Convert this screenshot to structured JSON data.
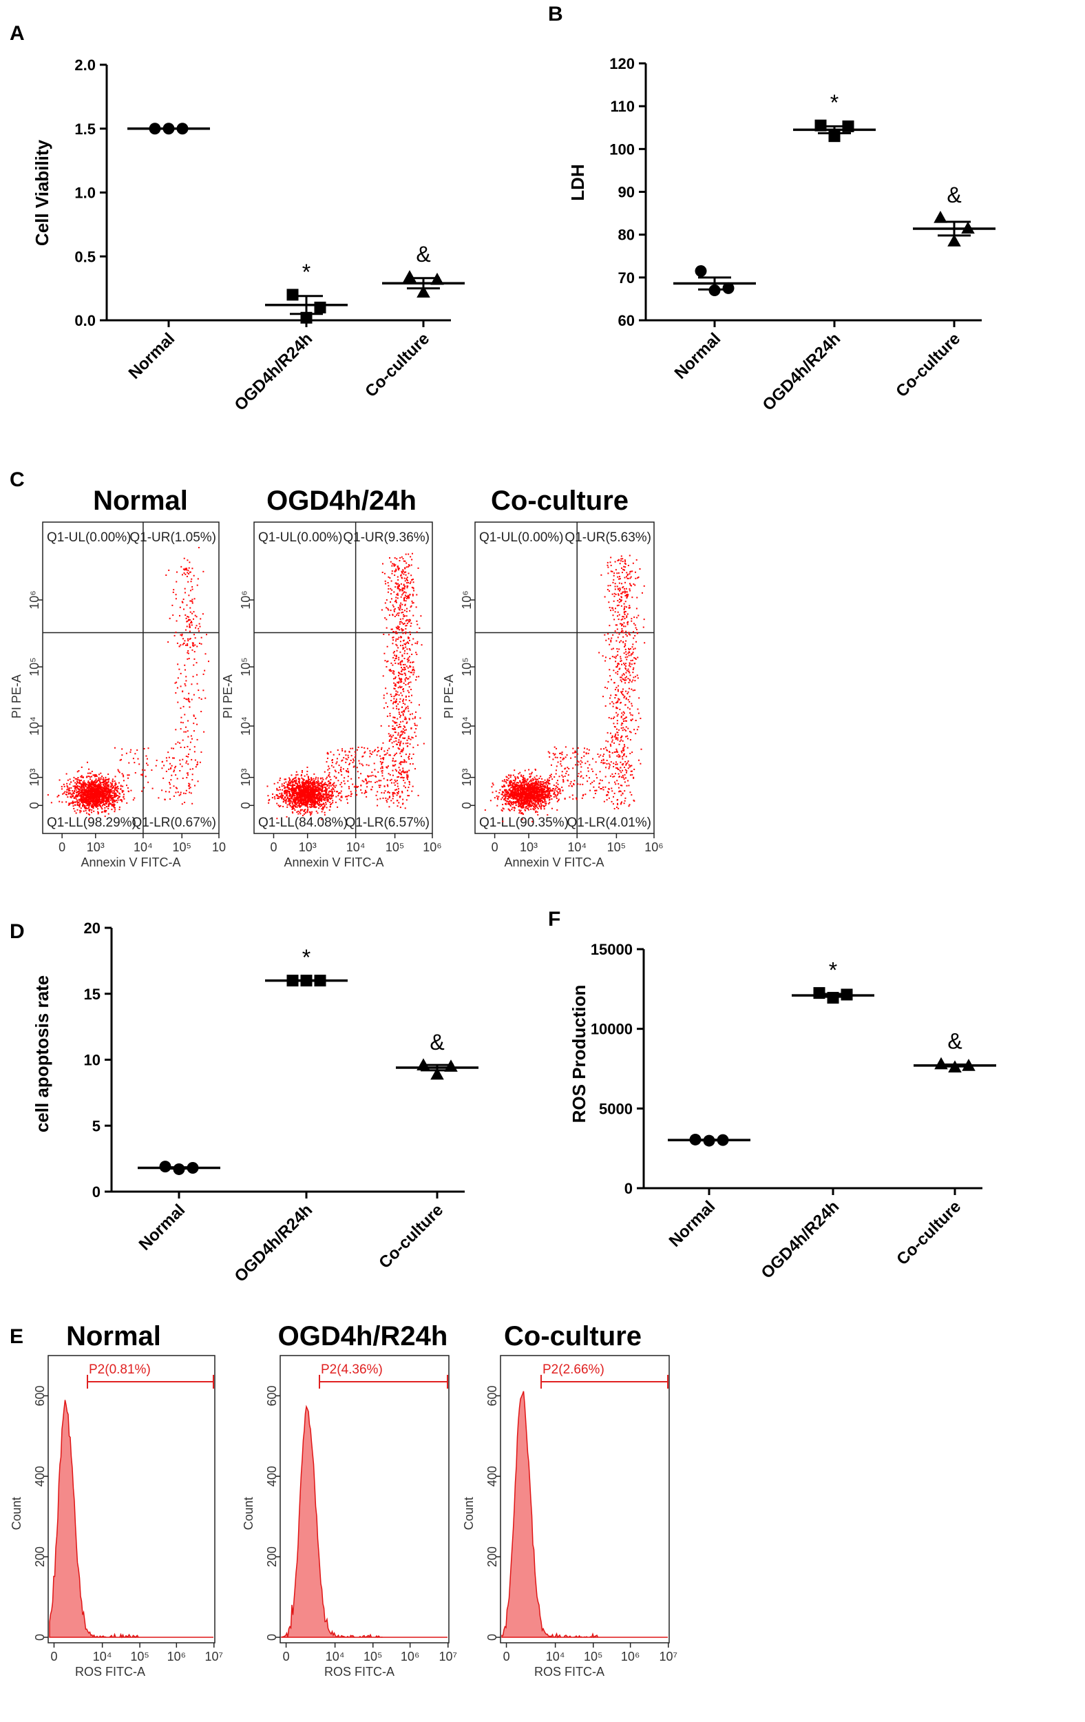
{
  "figure": {
    "panel_labels": {
      "A": "A",
      "B": "B",
      "C": "C",
      "D": "D",
      "F": "F",
      "E": "E"
    }
  },
  "chart_data": [
    {
      "panel": "A",
      "type": "scatter",
      "ylabel": "Cell Viability",
      "categories": [
        "Normal",
        "OGD4h/R24h",
        "Co-culture"
      ],
      "ylim": [
        0,
        2.0
      ],
      "yticks": [
        "0.0",
        "0.5",
        "1.0",
        "1.5",
        "2.0"
      ],
      "series": [
        {
          "marker": "circle",
          "values": [
            1.5,
            1.5,
            1.5
          ],
          "mean": 1.5,
          "sem": 0.0,
          "annotation": ""
        },
        {
          "marker": "square",
          "values": [
            0.2,
            0.02,
            0.1
          ],
          "mean": 0.12,
          "sem": 0.07,
          "annotation": "*"
        },
        {
          "marker": "triangle",
          "values": [
            0.34,
            0.22,
            0.32
          ],
          "mean": 0.29,
          "sem": 0.04,
          "annotation": "&"
        }
      ]
    },
    {
      "panel": "B",
      "type": "scatter",
      "ylabel": "LDH",
      "categories": [
        "Normal",
        "OGD4h/R24h",
        "Co-culture"
      ],
      "ylim": [
        60,
        120
      ],
      "yticks": [
        "60",
        "70",
        "80",
        "90",
        "100",
        "110",
        "120"
      ],
      "series": [
        {
          "marker": "circle",
          "values": [
            71.5,
            67,
            67.5
          ],
          "mean": 68.6,
          "sem": 1.4,
          "annotation": ""
        },
        {
          "marker": "square",
          "values": [
            105.5,
            103,
            105.3
          ],
          "mean": 104.5,
          "sem": 0.8,
          "annotation": "*"
        },
        {
          "marker": "triangle",
          "values": [
            84,
            78.5,
            81.5
          ],
          "mean": 81.4,
          "sem": 1.6,
          "annotation": "&"
        }
      ]
    },
    {
      "panel": "C",
      "type": "scatter",
      "kind": "flow cytometry dot plots",
      "xlabel": "Annexin V FITC-A",
      "ylabel": "PI PE-A",
      "plots": [
        {
          "title": "Normal",
          "UL": "Q1-UL(0.00%)",
          "UR": "Q1-UR(1.05%)",
          "LL": "Q1-LL(98.29%)",
          "LR": "Q1-LR(0.67%)",
          "xticks": [
            "0",
            "10³",
            "10⁴",
            "10⁵",
            "10"
          ],
          "yticks": [
            "0",
            "10³",
            "10⁴",
            "10⁵",
            "10⁶"
          ]
        },
        {
          "title": "OGD4h/24h",
          "UL": "Q1-UL(0.00%)",
          "UR": "Q1-UR(9.36%)",
          "LL": "Q1-LL(84.08%)",
          "LR": "Q1-LR(6.57%)",
          "xticks": [
            "0",
            "10³",
            "10⁴",
            "10⁵",
            "10⁶"
          ],
          "yticks": [
            "0",
            "10³",
            "10⁴",
            "10⁵",
            "10⁶"
          ]
        },
        {
          "title": "Co-culture",
          "UL": "Q1-UL(0.00%)",
          "UR": "Q1-UR(5.63%)",
          "LL": "Q1-LL(90.35%)",
          "LR": "Q1-LR(4.01%)",
          "xticks": [
            "0",
            "10³",
            "10⁴",
            "10⁵",
            "10⁶"
          ],
          "yticks": [
            "0",
            "10³",
            "10⁴",
            "10⁵",
            "10⁶"
          ]
        }
      ]
    },
    {
      "panel": "D",
      "type": "scatter",
      "ylabel": "cell apoptosis rate",
      "categories": [
        "Normal",
        "OGD4h/R24h",
        "Co-culture"
      ],
      "ylim": [
        0,
        20
      ],
      "yticks": [
        "0",
        "5",
        "10",
        "15",
        "20"
      ],
      "series": [
        {
          "marker": "circle",
          "values": [
            1.9,
            1.7,
            1.8
          ],
          "mean": 1.8,
          "sem": 0.05,
          "annotation": ""
        },
        {
          "marker": "square",
          "values": [
            16.0,
            16.0,
            16.0
          ],
          "mean": 16.0,
          "sem": 0.02,
          "annotation": "*"
        },
        {
          "marker": "triangle",
          "values": [
            9.6,
            8.9,
            9.5
          ],
          "mean": 9.4,
          "sem": 0.2,
          "annotation": "&"
        }
      ]
    },
    {
      "panel": "F",
      "type": "scatter",
      "ylabel": "ROS Production",
      "categories": [
        "Normal",
        "OGD4h/R24h",
        "Co-culture"
      ],
      "ylim": [
        0,
        15000
      ],
      "yticks": [
        "0",
        "5000",
        "10000",
        "15000"
      ],
      "series": [
        {
          "marker": "circle",
          "values": [
            3050,
            2980,
            3020
          ],
          "mean": 3020,
          "sem": 20,
          "annotation": ""
        },
        {
          "marker": "square",
          "values": [
            12250,
            11950,
            12150
          ],
          "mean": 12100,
          "sem": 90,
          "annotation": "*"
        },
        {
          "marker": "triangle",
          "values": [
            7800,
            7600,
            7700
          ],
          "mean": 7700,
          "sem": 60,
          "annotation": "&"
        }
      ]
    },
    {
      "panel": "E",
      "type": "area",
      "kind": "flow cytometry histograms",
      "xlabel": "ROS FITC-A",
      "ylabel": "Count",
      "yticks": [
        "0",
        "200",
        "400",
        "600"
      ],
      "xticks": [
        "0",
        "10⁴",
        "10⁵",
        "10⁶",
        "10⁷"
      ],
      "plots": [
        {
          "title": "Normal",
          "gate": "P2(0.81%)",
          "peak": 575
        },
        {
          "title": "OGD4h/R24h",
          "gate": "P2(4.36%)",
          "peak": 565
        },
        {
          "title": "Co-culture",
          "gate": "P2(2.66%)",
          "peak": 600
        }
      ]
    }
  ]
}
